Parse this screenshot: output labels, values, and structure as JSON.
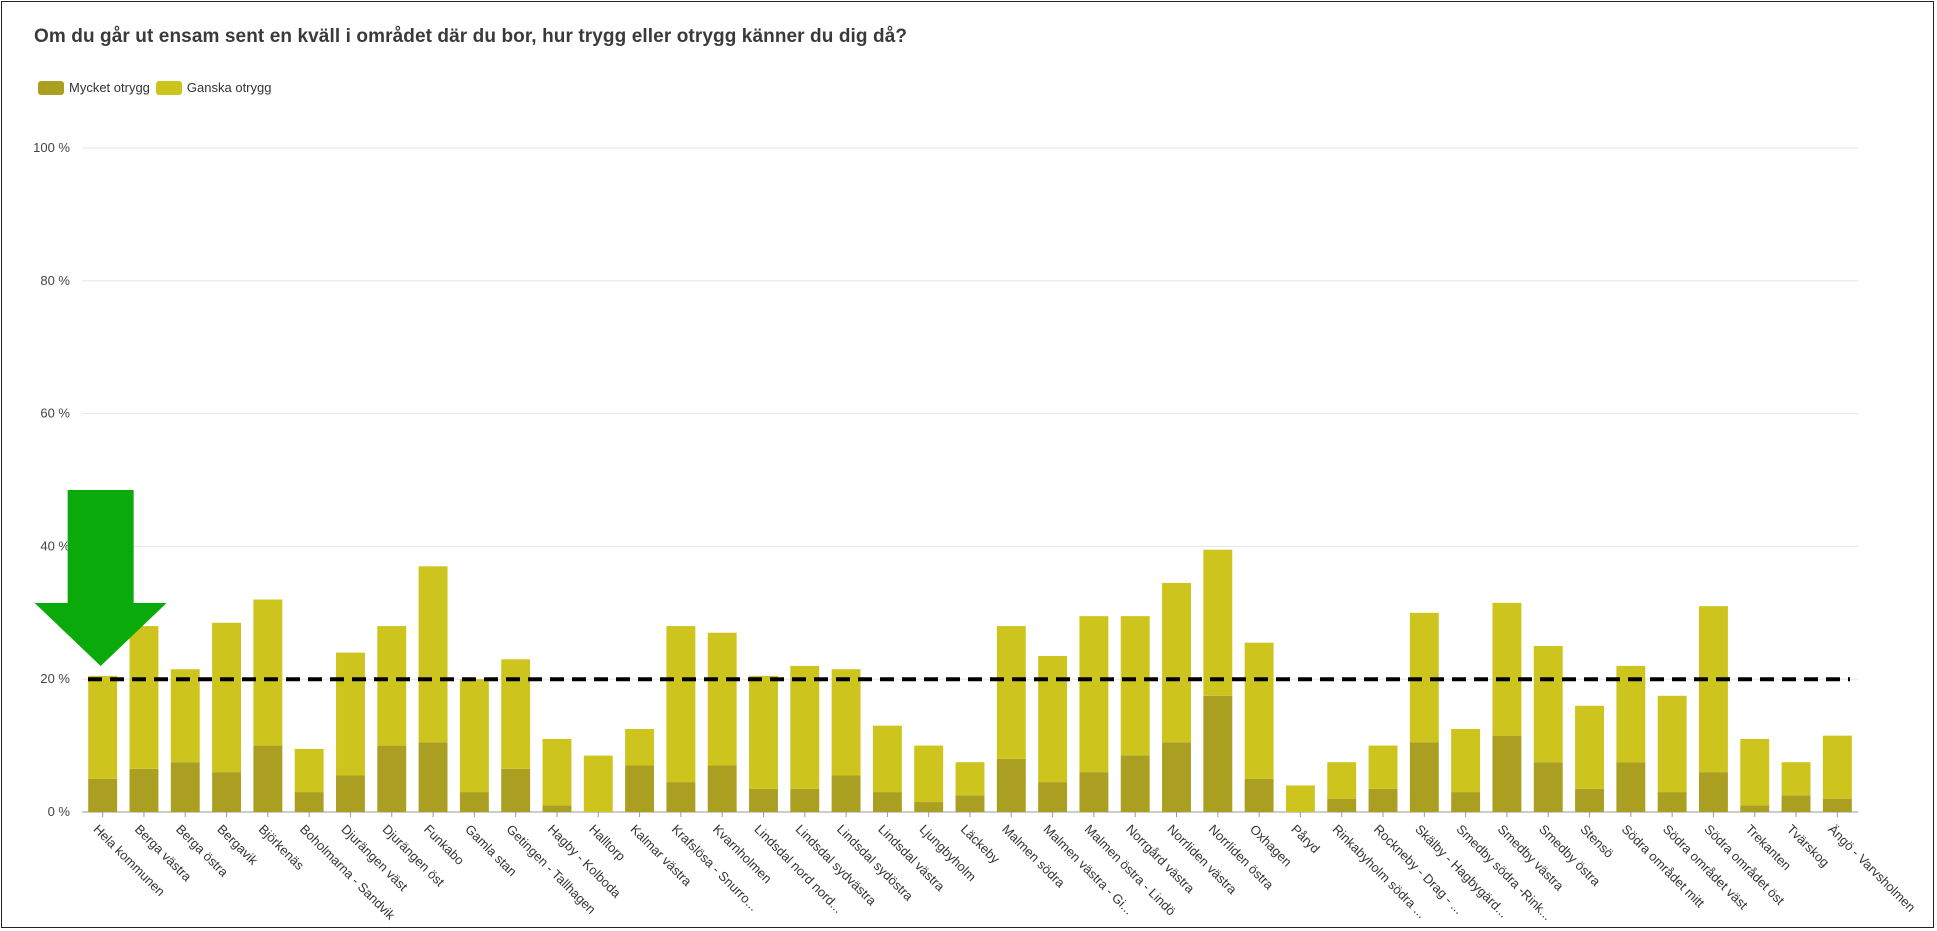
{
  "chart_data": {
    "type": "bar",
    "stacked": true,
    "title": "Om du går ut ensam sent en kväll i området där du bor, hur trygg eller otrygg känner du dig då?",
    "legend_position": "top-left",
    "y_axis": {
      "range": [
        0,
        100
      ],
      "ticks": [
        "0 %",
        "20 %",
        "40 %",
        "60 %",
        "80 %",
        "100 %"
      ],
      "tick_values": [
        0,
        20,
        40,
        60,
        80,
        100
      ]
    },
    "grid": true,
    "reference_line": {
      "value": 20,
      "style": "dashed",
      "color": "#000000"
    },
    "arrow_annotation": {
      "target_category": "Hela kommunen",
      "color": "#0aaa0a"
    },
    "categories": [
      "Hela kommunen",
      "Berga västra",
      "Berga östra",
      "Bergavik",
      "Björkenäs",
      "Boholmarna - Sandvik",
      "Djurängen väst",
      "Djurängen öst",
      "Funkabo",
      "Gamla stan",
      "Getingen - Tallhagen",
      "Hagby - Kolboda",
      "Halltorp",
      "Kalmar västra",
      "Krafslösa - Snurro...",
      "Kvarnholmen",
      "Lindsdal nord nord...",
      "Lindsdal sydvästra",
      "Lindsdal sydöstra",
      "Lindsdal västra",
      "Ljungbyholm",
      "Läckeby",
      "Malmen södra",
      "Malmen västra - Gi...",
      "Malmen östra - Lindö",
      "Norrgård västra",
      "Norrliden västra",
      "Norrliden östra",
      "Oxhagen",
      "Påryd",
      "Rinkabyholm södra ...",
      "Rockneby - Drag - ...",
      "Skälby - Hagbygärd...",
      "Smedby södra -Rink...",
      "Smedby västra",
      "Smedby östra",
      "Stensö",
      "Södra området mitt",
      "Södra området väst",
      "Södra området öst",
      "Trekanten",
      "Tvärskog",
      "Ängö - Varvsholmen"
    ],
    "series": [
      {
        "name": "Mycket otrygg",
        "color": "#ab9f22",
        "values": [
          5,
          6.5,
          7.5,
          6,
          10,
          3,
          5.5,
          10,
          10.5,
          3,
          6.5,
          1,
          0,
          7,
          4.5,
          7,
          3.5,
          3.5,
          5.5,
          3,
          1.5,
          2.5,
          8,
          4.5,
          6,
          8.5,
          10.5,
          17.5,
          5,
          0,
          2,
          3.5,
          10.5,
          3,
          11.5,
          7.5,
          3.5,
          7.5,
          3,
          6,
          1,
          2.5,
          2
        ]
      },
      {
        "name": "Ganska otrygg",
        "color": "#cdc51e",
        "values": [
          15.5,
          21.5,
          14,
          22.5,
          22,
          6.5,
          18.5,
          18,
          26.5,
          17,
          16.5,
          10,
          8.5,
          5.5,
          23.5,
          20,
          17,
          18.5,
          16,
          10,
          8.5,
          5,
          20,
          19,
          23.5,
          21,
          24,
          22,
          20.5,
          4,
          5.5,
          6.5,
          19.5,
          9.5,
          20,
          17.5,
          12.5,
          14.5,
          14.5,
          25,
          10,
          5,
          9.5
        ]
      }
    ]
  }
}
